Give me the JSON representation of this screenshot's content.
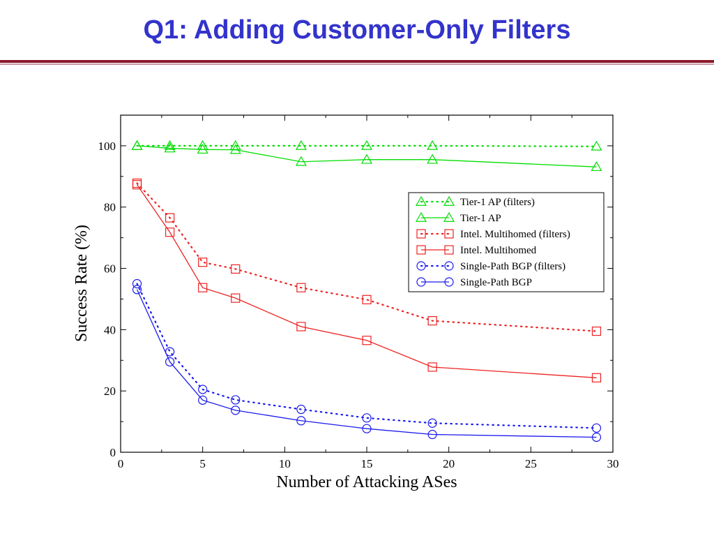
{
  "slide": {
    "title": "Q1: Adding Customer-Only Filters"
  },
  "chart_data": {
    "type": "line",
    "xlabel": "Number of Attacking ASes",
    "ylabel": "Success Rate (%)",
    "xlim": [
      0,
      30
    ],
    "ylim": [
      0,
      110
    ],
    "xticks": [
      0,
      5,
      10,
      15,
      20,
      25,
      30
    ],
    "yticks": [
      0,
      20,
      40,
      60,
      80,
      100
    ],
    "grid": false,
    "legend_position": "top-right",
    "x": [
      1,
      3,
      5,
      7,
      11,
      15,
      19,
      29
    ],
    "series": [
      {
        "name": "Tier-1 AP (filters)",
        "color": "#00dd00",
        "marker": "triangle",
        "line": "dotted",
        "values": [
          100,
          100,
          100,
          100,
          100,
          100,
          100,
          99.8
        ]
      },
      {
        "name": "Tier-1 AP",
        "color": "#00dd00",
        "marker": "triangle",
        "line": "solid",
        "values": [
          100,
          99.2,
          98.8,
          98.7,
          94.8,
          95.5,
          95.5,
          93.1
        ]
      },
      {
        "name": "Intel. Multihomed (filters)",
        "color": "#ee2222",
        "marker": "square",
        "line": "dotted",
        "values": [
          87.8,
          76.5,
          62,
          59.8,
          53.7,
          49.8,
          42.9,
          39.5
        ]
      },
      {
        "name": "Intel. Multihomed",
        "color": "#ee2222",
        "marker": "square",
        "line": "solid",
        "values": [
          87.3,
          71.8,
          53.7,
          50.3,
          41,
          36.5,
          27.8,
          24.3
        ]
      },
      {
        "name": "Single-Path BGP (filters)",
        "color": "#1a1aee",
        "marker": "circle",
        "line": "dotted",
        "values": [
          55,
          32.8,
          20.5,
          17.1,
          14,
          11.2,
          9.5,
          7.9
        ]
      },
      {
        "name": "Single-Path BGP",
        "color": "#1a1aee",
        "marker": "circle",
        "line": "solid",
        "values": [
          53.1,
          29.5,
          17,
          13.7,
          10.3,
          7.7,
          5.8,
          4.9
        ]
      }
    ]
  }
}
